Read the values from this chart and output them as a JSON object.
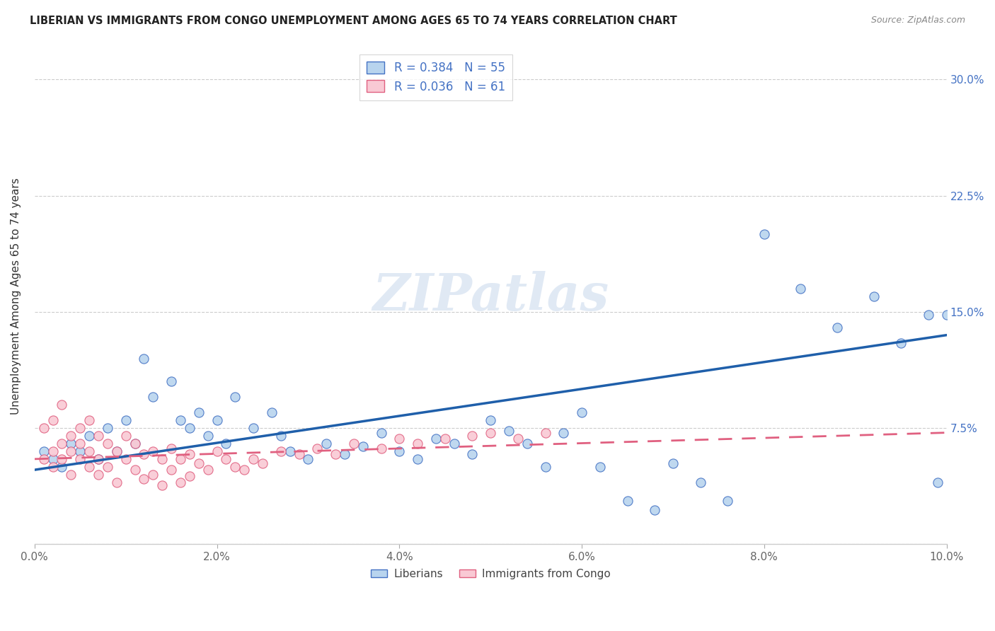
{
  "title": "LIBERIAN VS IMMIGRANTS FROM CONGO UNEMPLOYMENT AMONG AGES 65 TO 74 YEARS CORRELATION CHART",
  "source": "Source: ZipAtlas.com",
  "ylabel": "Unemployment Among Ages 65 to 74 years",
  "xlim": [
    0.0,
    0.1
  ],
  "ylim": [
    0.0,
    0.32
  ],
  "xticks": [
    0.0,
    0.02,
    0.04,
    0.06,
    0.08,
    0.1
  ],
  "xtick_labels": [
    "0.0%",
    "2.0%",
    "4.0%",
    "6.0%",
    "8.0%",
    "10.0%"
  ],
  "yticks": [
    0.0,
    0.075,
    0.15,
    0.225,
    0.3
  ],
  "ytick_labels": [
    "",
    "7.5%",
    "15.0%",
    "22.5%",
    "30.0%"
  ],
  "liberian_R": 0.384,
  "liberian_N": 55,
  "congo_R": 0.036,
  "congo_N": 61,
  "liberian_color": "#b8d4ee",
  "liberian_edge_color": "#4472c4",
  "liberian_line_color": "#1f5faa",
  "congo_color": "#f9c9d4",
  "congo_edge_color": "#e06080",
  "congo_line_color": "#e06080",
  "watermark_text": "ZIPatlas",
  "liberian_x": [
    0.001,
    0.002,
    0.003,
    0.004,
    0.005,
    0.006,
    0.007,
    0.008,
    0.009,
    0.01,
    0.011,
    0.012,
    0.013,
    0.015,
    0.016,
    0.017,
    0.018,
    0.019,
    0.02,
    0.021,
    0.022,
    0.024,
    0.026,
    0.027,
    0.028,
    0.03,
    0.032,
    0.034,
    0.036,
    0.038,
    0.04,
    0.042,
    0.044,
    0.046,
    0.048,
    0.05,
    0.052,
    0.054,
    0.056,
    0.058,
    0.06,
    0.062,
    0.065,
    0.068,
    0.07,
    0.073,
    0.076,
    0.08,
    0.084,
    0.088,
    0.092,
    0.095,
    0.098,
    0.099,
    0.1
  ],
  "liberian_y": [
    0.06,
    0.055,
    0.05,
    0.065,
    0.06,
    0.07,
    0.055,
    0.075,
    0.06,
    0.08,
    0.065,
    0.12,
    0.095,
    0.105,
    0.08,
    0.075,
    0.085,
    0.07,
    0.08,
    0.065,
    0.095,
    0.075,
    0.085,
    0.07,
    0.06,
    0.055,
    0.065,
    0.058,
    0.063,
    0.072,
    0.06,
    0.055,
    0.068,
    0.065,
    0.058,
    0.08,
    0.073,
    0.065,
    0.05,
    0.072,
    0.085,
    0.05,
    0.028,
    0.022,
    0.052,
    0.04,
    0.028,
    0.2,
    0.165,
    0.14,
    0.16,
    0.13,
    0.148,
    0.04,
    0.148
  ],
  "congo_x": [
    0.001,
    0.001,
    0.002,
    0.002,
    0.002,
    0.003,
    0.003,
    0.003,
    0.004,
    0.004,
    0.004,
    0.005,
    0.005,
    0.005,
    0.006,
    0.006,
    0.006,
    0.007,
    0.007,
    0.007,
    0.008,
    0.008,
    0.009,
    0.009,
    0.01,
    0.01,
    0.011,
    0.011,
    0.012,
    0.012,
    0.013,
    0.013,
    0.014,
    0.014,
    0.015,
    0.015,
    0.016,
    0.016,
    0.017,
    0.017,
    0.018,
    0.019,
    0.02,
    0.021,
    0.022,
    0.023,
    0.024,
    0.025,
    0.027,
    0.029,
    0.031,
    0.033,
    0.035,
    0.038,
    0.04,
    0.042,
    0.045,
    0.048,
    0.05,
    0.053,
    0.056
  ],
  "congo_y": [
    0.055,
    0.075,
    0.06,
    0.08,
    0.05,
    0.065,
    0.09,
    0.055,
    0.07,
    0.045,
    0.06,
    0.075,
    0.055,
    0.065,
    0.08,
    0.06,
    0.05,
    0.07,
    0.055,
    0.045,
    0.065,
    0.05,
    0.06,
    0.04,
    0.07,
    0.055,
    0.065,
    0.048,
    0.058,
    0.042,
    0.06,
    0.045,
    0.055,
    0.038,
    0.062,
    0.048,
    0.055,
    0.04,
    0.058,
    0.044,
    0.052,
    0.048,
    0.06,
    0.055,
    0.05,
    0.048,
    0.055,
    0.052,
    0.06,
    0.058,
    0.062,
    0.058,
    0.065,
    0.062,
    0.068,
    0.065,
    0.068,
    0.07,
    0.072,
    0.068,
    0.072
  ],
  "lib_line_x0": 0.0,
  "lib_line_y0": 0.048,
  "lib_line_x1": 0.1,
  "lib_line_y1": 0.135,
  "con_line_x0": 0.0,
  "con_line_y0": 0.055,
  "con_line_x1": 0.1,
  "con_line_y1": 0.072
}
